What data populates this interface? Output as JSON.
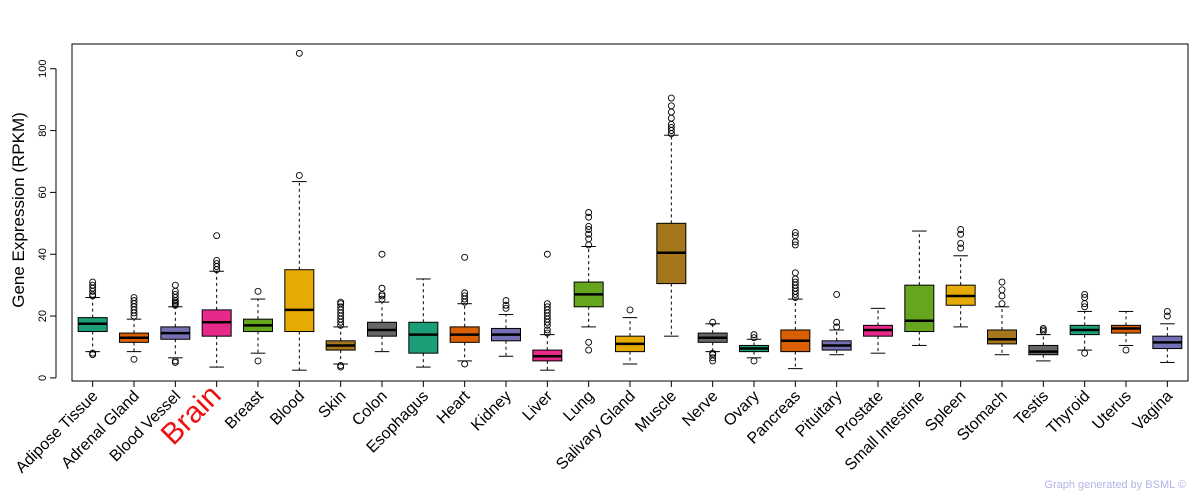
{
  "chart_data": {
    "type": "box",
    "title": "",
    "xlabel": "",
    "ylabel": "Gene Expression (RPKM)",
    "ylim": [
      -1,
      108
    ],
    "yticks": [
      0,
      20,
      40,
      60,
      80,
      100
    ],
    "highlight_category": "Brain",
    "credit": "Graph generated by BSML ©",
    "categories": [
      "Adipose Tissue",
      "Adrenal Gland",
      "Blood Vessel",
      "Brain",
      "Breast",
      "Blood",
      "Skin",
      "Colon",
      "Esophagus",
      "Heart",
      "Kidney",
      "Liver",
      "Lung",
      "Salivary Gland",
      "Muscle",
      "Nerve",
      "Ovary",
      "Pancreas",
      "Pituitary",
      "Prostate",
      "Small Intestine",
      "Spleen",
      "Stomach",
      "Testis",
      "Thyroid",
      "Uterus",
      "Vagina"
    ],
    "colors": [
      "#1b9e77",
      "#d95f02",
      "#7570b3",
      "#e7298a",
      "#66a61e",
      "#e6ab02",
      "#a6761d",
      "#666666",
      "#1b9e77",
      "#d95f02",
      "#7570b3",
      "#e7298a",
      "#66a61e",
      "#e6ab02",
      "#a6761d",
      "#666666",
      "#1b9e77",
      "#d95f02",
      "#7570b3",
      "#e7298a",
      "#66a61e",
      "#e6ab02",
      "#a6761d",
      "#666666",
      "#1b9e77",
      "#d95f02",
      "#7570b3"
    ],
    "boxes": [
      {
        "wlo": 8.5,
        "q1": 15,
        "median": 17.5,
        "q3": 19.5,
        "whi": 26,
        "outliers": [
          7.5,
          8,
          26.5,
          27,
          28,
          29,
          30,
          31
        ]
      },
      {
        "wlo": 8.5,
        "q1": 11.5,
        "median": 13,
        "q3": 14.5,
        "whi": 19,
        "outliers": [
          6,
          20,
          21,
          22,
          23,
          24,
          25,
          26
        ]
      },
      {
        "wlo": 6.5,
        "q1": 12.5,
        "median": 14.5,
        "q3": 16.5,
        "whi": 23,
        "outliers": [
          5,
          5.5,
          23.5,
          24,
          24.5,
          25,
          26,
          27,
          28,
          30
        ]
      },
      {
        "wlo": 3.5,
        "q1": 13.5,
        "median": 18,
        "q3": 22,
        "whi": 34.5,
        "outliers": [
          35,
          36,
          37,
          38,
          46
        ]
      },
      {
        "wlo": 8,
        "q1": 15,
        "median": 17,
        "q3": 19,
        "whi": 25.5,
        "outliers": [
          5.5,
          28
        ]
      },
      {
        "wlo": 2.5,
        "q1": 15,
        "median": 22,
        "q3": 35,
        "whi": 63.5,
        "outliers": [
          65.5,
          105
        ]
      },
      {
        "wlo": 4.5,
        "q1": 9,
        "median": 10.5,
        "q3": 12,
        "whi": 16.5,
        "outliers": [
          3.5,
          4,
          17,
          18,
          19,
          20,
          21,
          22,
          23,
          24,
          24.5
        ]
      },
      {
        "wlo": 8.5,
        "q1": 13.5,
        "median": 15.5,
        "q3": 18,
        "whi": 24.5,
        "outliers": [
          25.5,
          26.5,
          27,
          29,
          40
        ]
      },
      {
        "wlo": 3.5,
        "q1": 8,
        "median": 14,
        "q3": 18,
        "whi": 32,
        "outliers": []
      },
      {
        "wlo": 5.5,
        "q1": 11.5,
        "median": 14,
        "q3": 16.5,
        "whi": 24,
        "outliers": [
          4.5,
          24.5,
          25.5,
          26.5,
          27.5,
          39
        ]
      },
      {
        "wlo": 7,
        "q1": 12,
        "median": 14,
        "q3": 16,
        "whi": 20.5,
        "outliers": [
          22.5,
          23.5,
          25
        ]
      },
      {
        "wlo": 2.5,
        "q1": 5.5,
        "median": 7,
        "q3": 9,
        "whi": 14,
        "outliers": [
          14.5,
          15.5,
          17,
          18,
          19,
          20,
          21,
          22,
          23,
          24,
          40
        ]
      },
      {
        "wlo": 16.5,
        "q1": 23,
        "median": 27,
        "q3": 31,
        "whi": 42.5,
        "outliers": [
          9,
          11.5,
          43,
          45,
          46.5,
          48,
          49,
          52,
          53.5
        ]
      },
      {
        "wlo": 4.5,
        "q1": 8.5,
        "median": 11,
        "q3": 13.5,
        "whi": 19.5,
        "outliers": [
          22
        ]
      },
      {
        "wlo": 13.5,
        "q1": 30.5,
        "median": 40.5,
        "q3": 50,
        "whi": 78.5,
        "outliers": [
          79,
          80,
          81,
          82,
          84,
          86,
          88,
          90.5
        ]
      },
      {
        "wlo": 8.5,
        "q1": 11.5,
        "median": 13,
        "q3": 14.5,
        "whi": 17.5,
        "outliers": [
          5.5,
          6.5,
          7.5,
          8,
          18
        ]
      },
      {
        "wlo": 6.5,
        "q1": 8.5,
        "median": 9.5,
        "q3": 10.5,
        "whi": 12.5,
        "outliers": [
          5.5,
          13,
          14
        ]
      },
      {
        "wlo": 3,
        "q1": 8.5,
        "median": 12,
        "q3": 15.5,
        "whi": 25.5,
        "outliers": [
          26,
          27,
          28,
          29,
          30,
          31,
          32,
          34,
          43,
          44,
          46,
          47
        ]
      },
      {
        "wlo": 7.5,
        "q1": 9,
        "median": 10.5,
        "q3": 12,
        "whi": 15.5,
        "outliers": [
          16.5,
          18,
          27
        ]
      },
      {
        "wlo": 8,
        "q1": 13.5,
        "median": 15.5,
        "q3": 17,
        "whi": 22.5,
        "outliers": []
      },
      {
        "wlo": 10.5,
        "q1": 15,
        "median": 18.5,
        "q3": 30,
        "whi": 47.5,
        "outliers": []
      },
      {
        "wlo": 16.5,
        "q1": 23.5,
        "median": 26.5,
        "q3": 30,
        "whi": 39.5,
        "outliers": [
          42,
          43.5,
          46.5,
          48
        ]
      },
      {
        "wlo": 7.5,
        "q1": 11,
        "median": 12.5,
        "q3": 15.5,
        "whi": 23,
        "outliers": [
          24,
          26.5,
          28.5,
          31
        ]
      },
      {
        "wlo": 5.5,
        "q1": 7.5,
        "median": 8.5,
        "q3": 10.5,
        "whi": 14,
        "outliers": [
          15,
          15.5,
          16
        ]
      },
      {
        "wlo": 9,
        "q1": 14,
        "median": 15.5,
        "q3": 17,
        "whi": 21.5,
        "outliers": [
          8,
          23,
          24,
          26,
          27
        ]
      },
      {
        "wlo": 10.5,
        "q1": 14.5,
        "median": 16,
        "q3": 17,
        "whi": 21.5,
        "outliers": [
          9
        ]
      },
      {
        "wlo": 5,
        "q1": 9.5,
        "median": 11.5,
        "q3": 13.5,
        "whi": 17.5,
        "outliers": [
          20,
          21.5
        ]
      }
    ]
  }
}
